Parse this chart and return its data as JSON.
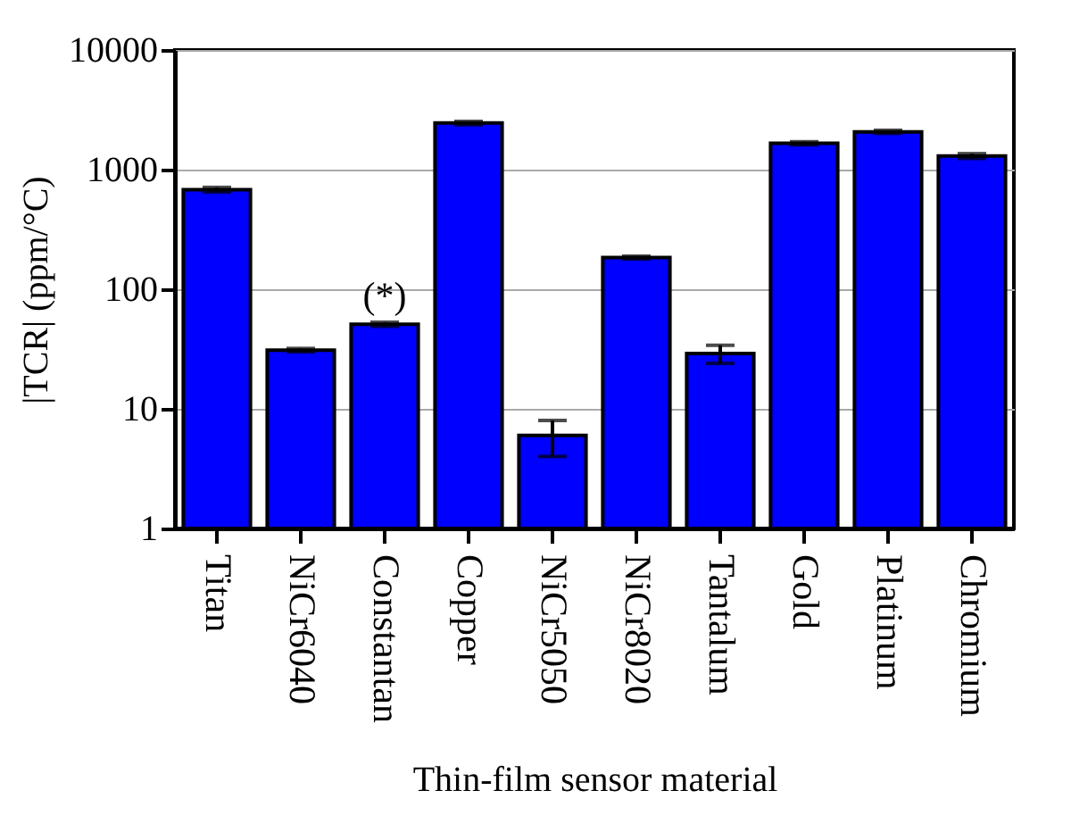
{
  "chart_data": {
    "type": "bar",
    "xlabel": "Thin-film sensor material",
    "ylabel": "|TCR| (ppm/°C)",
    "categories": [
      "Titan",
      "NiCr6040",
      "Constantan",
      "Copper",
      "NiCr5050",
      "NiCr8020",
      "Tantalum",
      "Gold",
      "Platinum",
      "Chromium"
    ],
    "values": [
      680,
      31,
      51,
      2450,
      6,
      184,
      29,
      1660,
      2070,
      1300
    ],
    "errors": [
      30,
      1,
      2,
      80,
      [
        4,
        8
      ],
      5,
      [
        24,
        34
      ],
      50,
      60,
      60
    ],
    "color": "#0000ff",
    "log": true,
    "ylim": [
      1,
      10000
    ],
    "yticks": [
      1,
      10,
      100,
      1000,
      10000
    ],
    "grid": "y",
    "annotations": [
      {
        "text": "(*)",
        "x": "Constantan",
        "y": 51
      }
    ]
  }
}
